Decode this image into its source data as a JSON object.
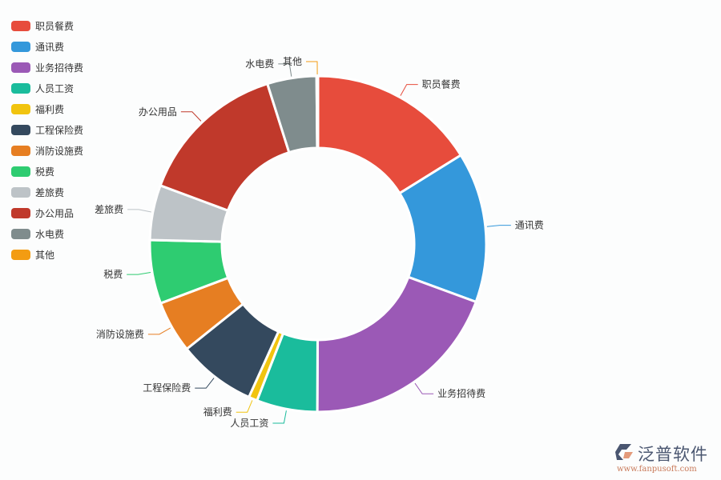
{
  "chart_data": {
    "type": "pie",
    "variant": "donut",
    "legend_position": "top-left",
    "categories": [
      "职员餐费",
      "通讯费",
      "业务招待费",
      "人员工资",
      "福利费",
      "工程保险费",
      "消防设施费",
      "税费",
      "差旅费",
      "办公用品",
      "水电费",
      "其他"
    ],
    "values": [
      58,
      52,
      70,
      21,
      3,
      27,
      18,
      22,
      19,
      52,
      17,
      0.5
    ],
    "colors": [
      "#e74c3c",
      "#3498db",
      "#9b59b6",
      "#1abc9c",
      "#f1c40f",
      "#34495e",
      "#e67e22",
      "#2ecc71",
      "#bdc3c7",
      "#c0392b",
      "#7f8c8d",
      "#f39c12"
    ]
  },
  "watermark": {
    "brand": "泛普软件",
    "url": "www.fanpusoft.com"
  }
}
